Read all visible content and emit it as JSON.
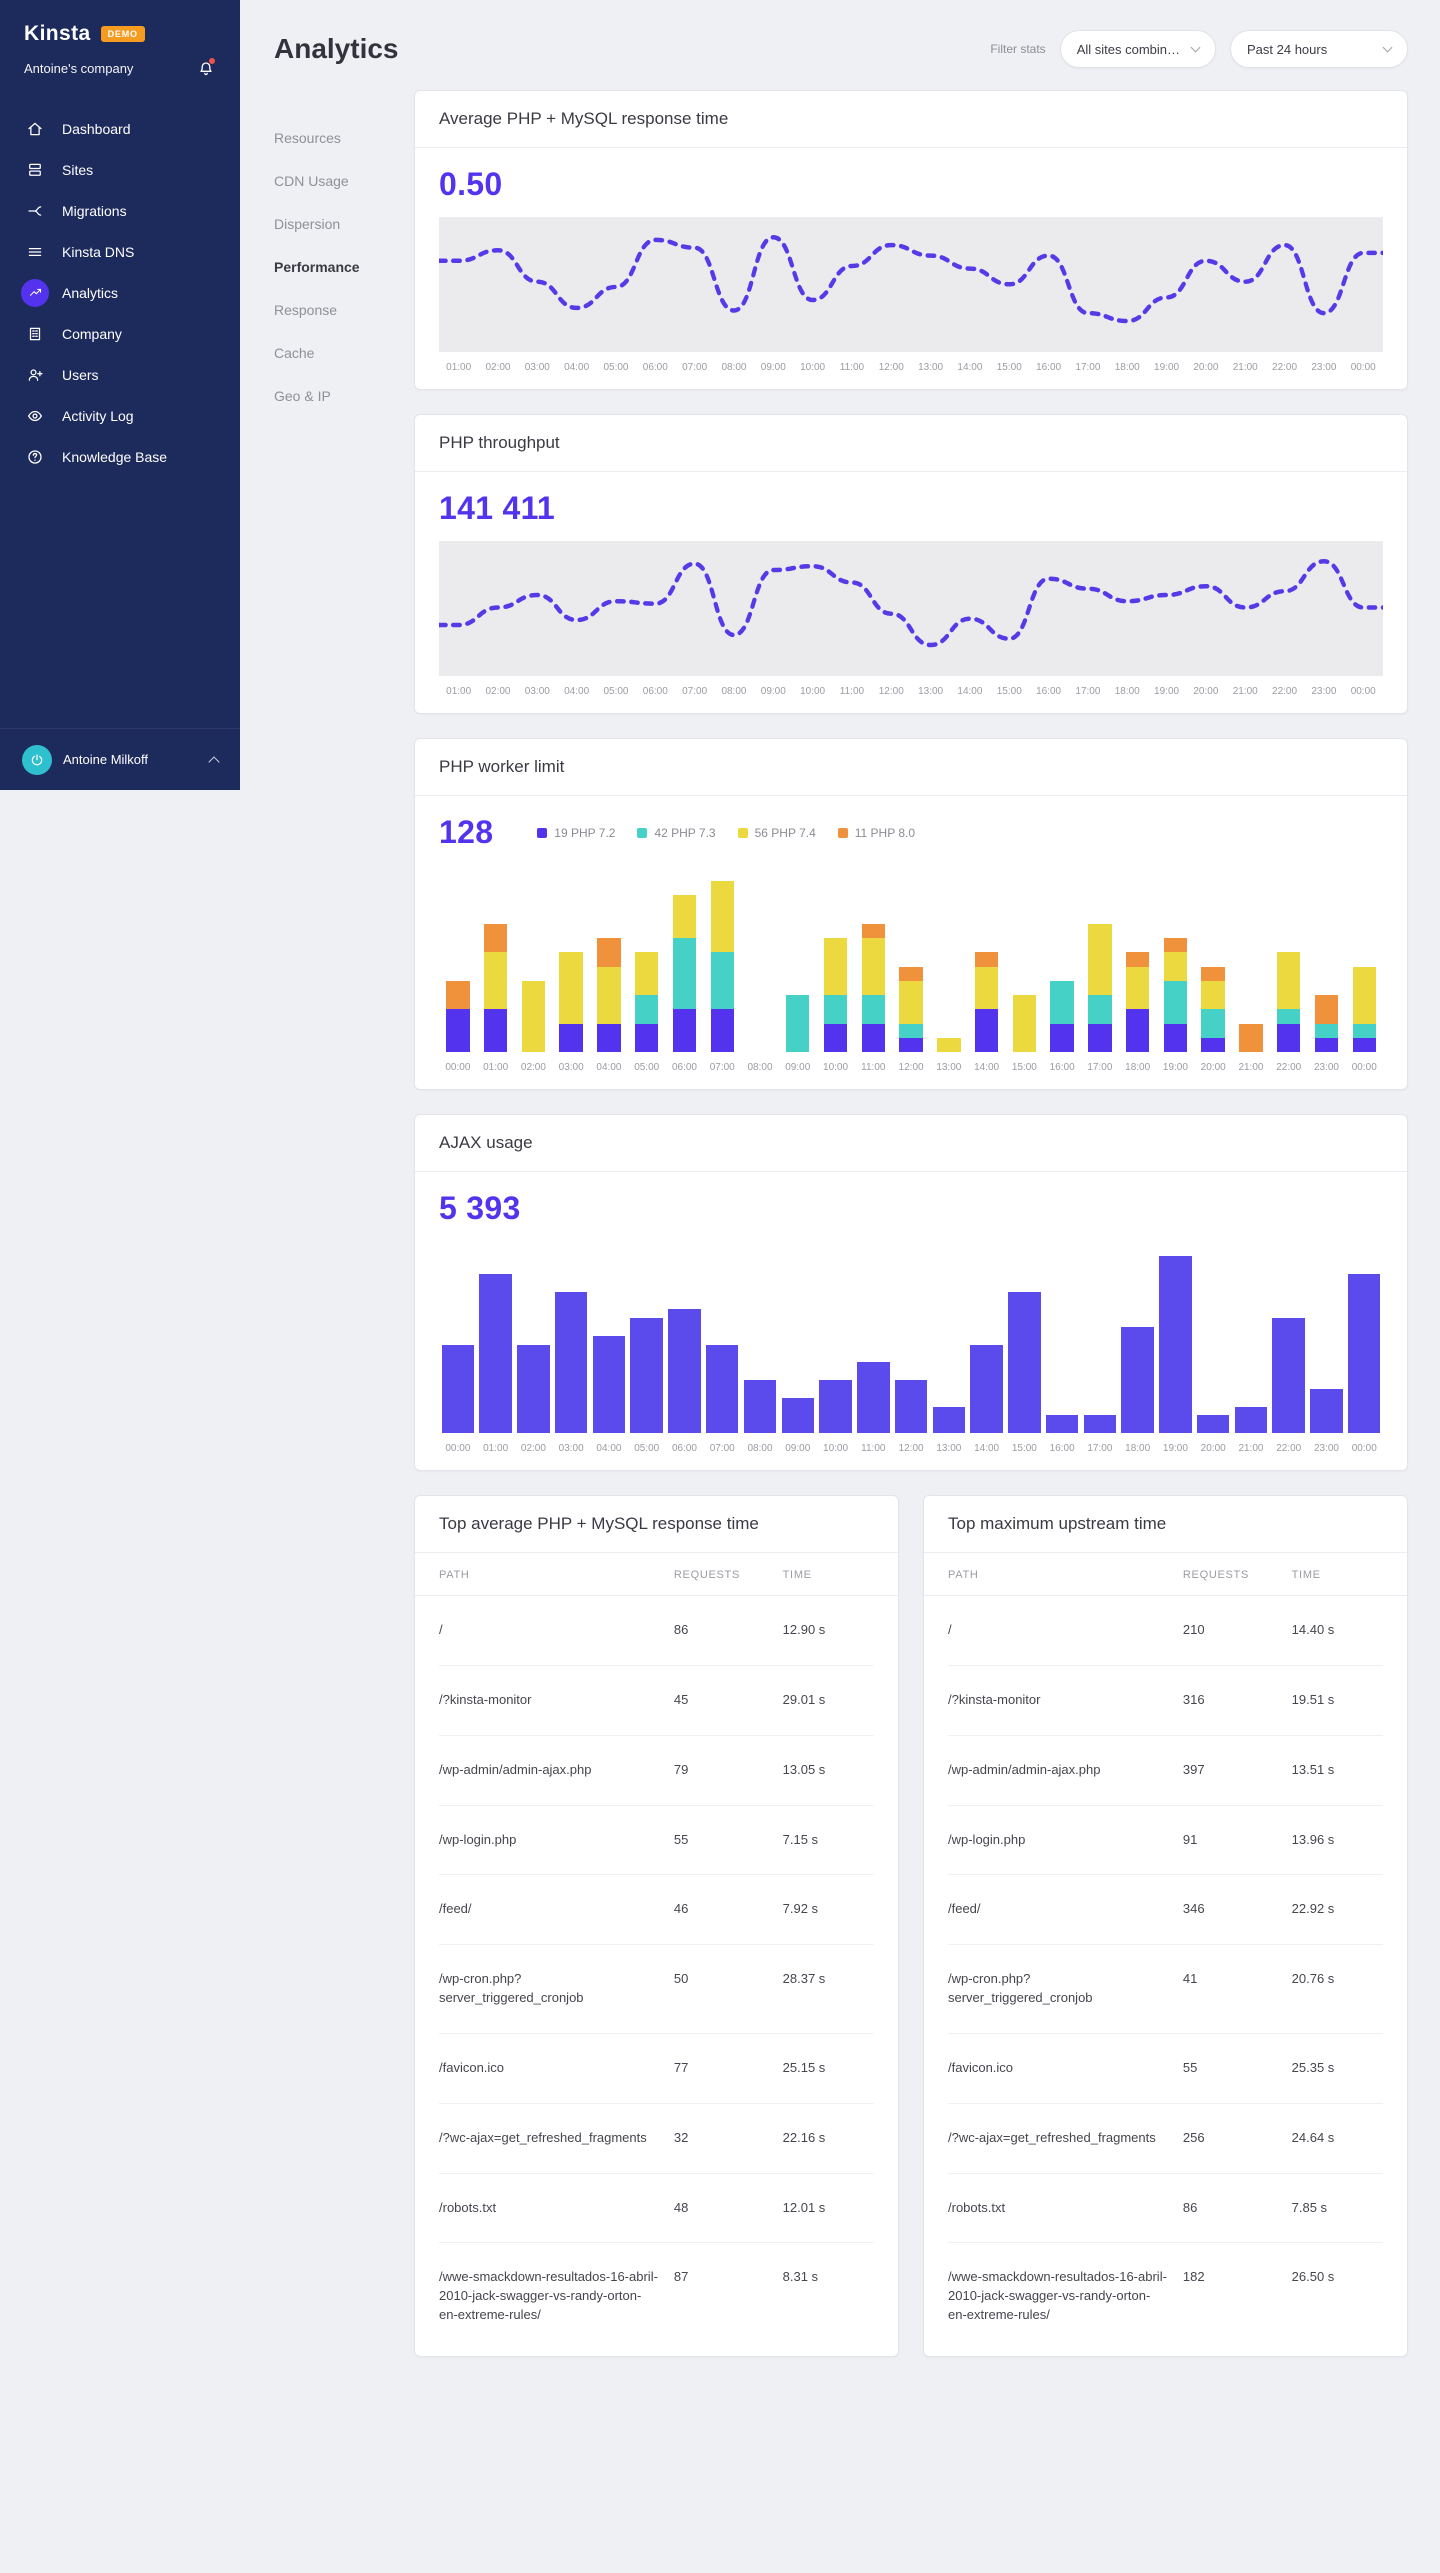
{
  "colors": {
    "accent": "#5333ed",
    "sidebar_bg": "#1d2a5c",
    "demo_badge": "#f59b20",
    "php72": "#5333ed",
    "php73": "#45d1c5",
    "php74": "#ecd93f",
    "php80": "#f0923c",
    "ajax_bar": "#5b4aec",
    "line": "#5839e8"
  },
  "sidebar": {
    "logo": "Kinsta",
    "badge": "DEMO",
    "company": "Antoine's company",
    "items": [
      {
        "label": "Dashboard",
        "icon": "home-icon",
        "active": false
      },
      {
        "label": "Sites",
        "icon": "sites-icon",
        "active": false
      },
      {
        "label": "Migrations",
        "icon": "migrations-icon",
        "active": false
      },
      {
        "label": "Kinsta DNS",
        "icon": "dns-icon",
        "active": false
      },
      {
        "label": "Analytics",
        "icon": "analytics-icon",
        "active": true
      },
      {
        "label": "Company",
        "icon": "company-icon",
        "active": false
      },
      {
        "label": "Users",
        "icon": "user-plus-icon",
        "active": false
      },
      {
        "label": "Activity Log",
        "icon": "eye-icon",
        "active": false
      },
      {
        "label": "Knowledge Base",
        "icon": "help-circle-icon",
        "active": false
      }
    ],
    "user": {
      "name": "Antoine Milkoff"
    }
  },
  "header": {
    "title": "Analytics",
    "filter_label": "Filter stats",
    "site_filter": "All sites combin…",
    "range_filter": "Past 24 hours"
  },
  "subnav": {
    "active": "Performance",
    "items": [
      "Resources",
      "CDN Usage",
      "Dispersion",
      "Performance",
      "Response",
      "Cache",
      "Geo & IP"
    ]
  },
  "cards": [
    {
      "title": "Average PHP + MySQL response time",
      "value": "0.50"
    },
    {
      "title": "PHP throughput",
      "value": "141 411"
    },
    {
      "title": "PHP worker limit",
      "value": "128",
      "legend": [
        {
          "label": "19 PHP 7.2",
          "color": "#5333ed"
        },
        {
          "label": "42 PHP 7.3",
          "color": "#45d1c5"
        },
        {
          "label": "56 PHP 7.4",
          "color": "#ecd93f"
        },
        {
          "label": "11 PHP 8.0",
          "color": "#f0923c"
        }
      ]
    },
    {
      "title": "AJAX usage",
      "value": "5 393"
    }
  ],
  "chart_data": [
    {
      "type": "line",
      "title": "Average PHP + MySQL response time",
      "summary_value": 0.5,
      "unit": "s",
      "color": "#5839e8",
      "x": [
        "01:00",
        "02:00",
        "03:00",
        "04:00",
        "05:00",
        "06:00",
        "07:00",
        "08:00",
        "09:00",
        "10:00",
        "11:00",
        "12:00",
        "13:00",
        "14:00",
        "15:00",
        "16:00",
        "17:00",
        "18:00",
        "19:00",
        "20:00",
        "21:00",
        "22:00",
        "23:00",
        "00:00"
      ],
      "values": [
        0.52,
        0.56,
        0.44,
        0.34,
        0.42,
        0.6,
        0.57,
        0.33,
        0.61,
        0.37,
        0.5,
        0.58,
        0.54,
        0.49,
        0.43,
        0.54,
        0.32,
        0.29,
        0.38,
        0.52,
        0.44,
        0.58,
        0.32,
        0.55
      ],
      "note": "values estimated from line shape; no y-axis shown"
    },
    {
      "type": "line",
      "title": "PHP throughput",
      "summary_value": 141411,
      "unit": "requests",
      "color": "#5839e8",
      "x": [
        "01:00",
        "02:00",
        "03:00",
        "04:00",
        "05:00",
        "06:00",
        "07:00",
        "08:00",
        "09:00",
        "10:00",
        "11:00",
        "12:00",
        "13:00",
        "14:00",
        "15:00",
        "16:00",
        "17:00",
        "18:00",
        "19:00",
        "20:00",
        "21:00",
        "22:00",
        "23:00",
        "00:00"
      ],
      "values": [
        4200,
        5600,
        6600,
        4600,
        6100,
        5900,
        9100,
        3400,
        8600,
        8900,
        7600,
        5100,
        2600,
        4700,
        3100,
        7900,
        7100,
        6100,
        6600,
        7300,
        5600,
        6900,
        9300,
        5600
      ],
      "note": "values estimated from line shape; no y-axis shown"
    },
    {
      "type": "stacked-bar",
      "title": "PHP worker limit",
      "summary_value": 128,
      "ylim": [
        0,
        13
      ],
      "categories": [
        "00:00",
        "01:00",
        "02:00",
        "03:00",
        "04:00",
        "05:00",
        "06:00",
        "07:00",
        "08:00",
        "09:00",
        "10:00",
        "11:00",
        "12:00",
        "13:00",
        "14:00",
        "15:00",
        "16:00",
        "17:00",
        "18:00",
        "19:00",
        "20:00",
        "21:00",
        "22:00",
        "23:00",
        "00:00"
      ],
      "series": [
        {
          "name": "19 PHP 7.2",
          "color": "#5333ed",
          "values": [
            3,
            3,
            0,
            2,
            2,
            2,
            3,
            3,
            0,
            0,
            2,
            2,
            1,
            0,
            3,
            0,
            2,
            2,
            3,
            2,
            1,
            0,
            2,
            1,
            1
          ]
        },
        {
          "name": "42 PHP 7.3",
          "color": "#45d1c5",
          "values": [
            0,
            0,
            0,
            0,
            0,
            2,
            5,
            4,
            0,
            4,
            2,
            2,
            1,
            0,
            0,
            0,
            3,
            2,
            0,
            3,
            2,
            0,
            1,
            1,
            1
          ]
        },
        {
          "name": "56 PHP 7.4",
          "color": "#ecd93f",
          "values": [
            0,
            4,
            5,
            5,
            4,
            3,
            3,
            5,
            0,
            0,
            4,
            4,
            3,
            1,
            3,
            4,
            0,
            5,
            3,
            2,
            2,
            0,
            4,
            0,
            4
          ]
        },
        {
          "name": "11 PHP 8.0",
          "color": "#f0923c",
          "values": [
            2,
            2,
            0,
            0,
            2,
            0,
            0,
            0,
            0,
            0,
            0,
            1,
            1,
            0,
            1,
            0,
            0,
            0,
            1,
            1,
            1,
            2,
            0,
            2,
            0
          ]
        }
      ],
      "note": "segment heights estimated; no y-axis shown"
    },
    {
      "type": "bar",
      "title": "AJAX usage",
      "summary_value": 5393,
      "ylim": [
        0,
        430
      ],
      "color": "#5b4aec",
      "categories": [
        "00:00",
        "01:00",
        "02:00",
        "03:00",
        "04:00",
        "05:00",
        "06:00",
        "07:00",
        "08:00",
        "09:00",
        "10:00",
        "11:00",
        "12:00",
        "13:00",
        "14:00",
        "15:00",
        "16:00",
        "17:00",
        "18:00",
        "19:00",
        "20:00",
        "21:00",
        "22:00",
        "23:00",
        "00:00"
      ],
      "values": [
        200,
        360,
        200,
        320,
        220,
        260,
        280,
        200,
        120,
        80,
        120,
        160,
        120,
        60,
        200,
        320,
        40,
        40,
        240,
        400,
        40,
        60,
        260,
        100,
        360
      ],
      "note": "bar heights estimated; no y-axis shown"
    }
  ],
  "tables": [
    {
      "title": "Top average PHP + MySQL response time",
      "headers": [
        "PATH",
        "REQUESTS",
        "TIME"
      ],
      "rows": [
        [
          "/",
          "86",
          "12.90 s"
        ],
        [
          "/?kinsta-monitor",
          "45",
          "29.01 s"
        ],
        [
          "/wp-admin/admin-ajax.php",
          "79",
          "13.05 s"
        ],
        [
          "/wp-login.php",
          "55",
          "7.15 s"
        ],
        [
          "/feed/",
          "46",
          "7.92 s"
        ],
        [
          "/wp-cron.php?server_triggered_cronjob",
          "50",
          "28.37 s"
        ],
        [
          "/favicon.ico",
          "77",
          "25.15 s"
        ],
        [
          "/?wc-ajax=get_refreshed_fragments",
          "32",
          "22.16 s"
        ],
        [
          "/robots.txt",
          "48",
          "12.01 s"
        ],
        [
          "/wwe-smackdown-resultados-16-abril-2010-jack-swagger-vs-randy-orton-en-extreme-rules/",
          "87",
          "8.31 s"
        ]
      ]
    },
    {
      "title": "Top maximum upstream time",
      "headers": [
        "PATH",
        "REQUESTS",
        "TIME"
      ],
      "rows": [
        [
          "/",
          "210",
          "14.40 s"
        ],
        [
          "/?kinsta-monitor",
          "316",
          "19.51 s"
        ],
        [
          "/wp-admin/admin-ajax.php",
          "397",
          "13.51 s"
        ],
        [
          "/wp-login.php",
          "91",
          "13.96 s"
        ],
        [
          "/feed/",
          "346",
          "22.92 s"
        ],
        [
          "/wp-cron.php?server_triggered_cronjob",
          "41",
          "20.76 s"
        ],
        [
          "/favicon.ico",
          "55",
          "25.35 s"
        ],
        [
          "/?wc-ajax=get_refreshed_fragments",
          "256",
          "24.64 s"
        ],
        [
          "/robots.txt",
          "86",
          "7.85 s"
        ],
        [
          "/wwe-smackdown-resultados-16-abril-2010-jack-swagger-vs-randy-orton-en-extreme-rules/",
          "182",
          "26.50 s"
        ]
      ]
    }
  ]
}
